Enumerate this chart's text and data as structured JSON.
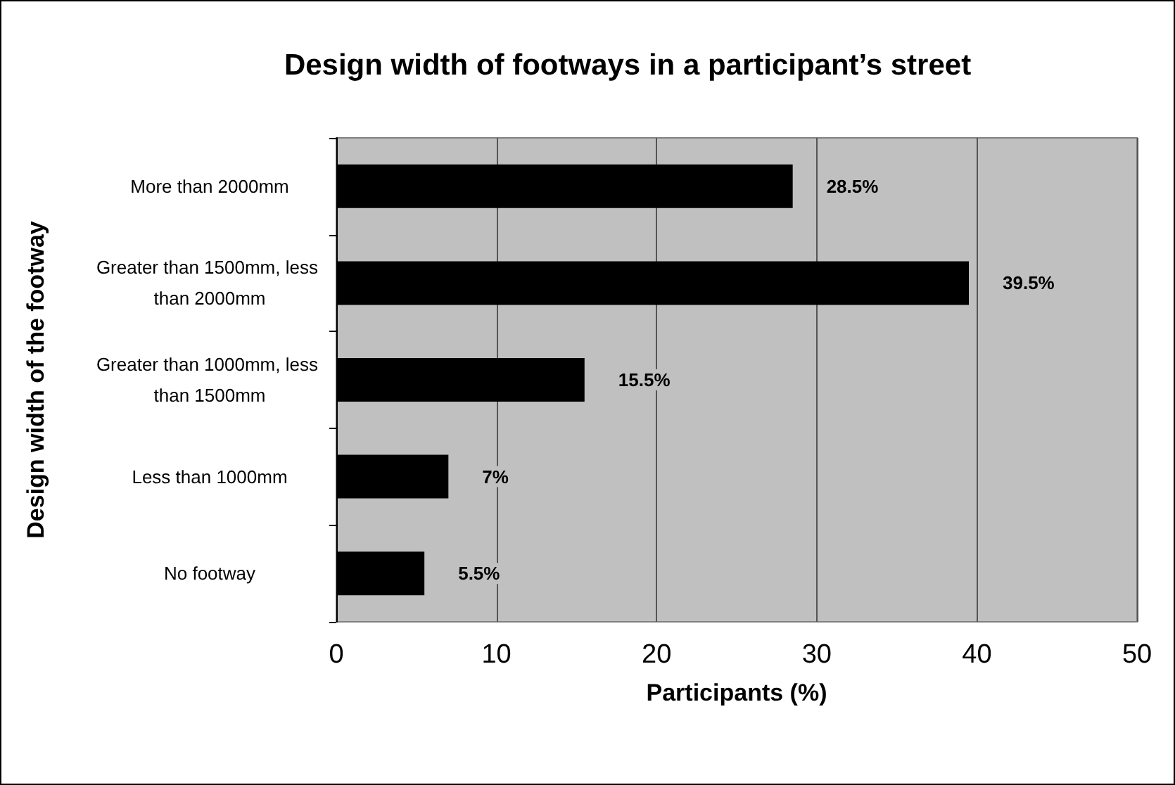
{
  "chart_data": {
    "type": "bar",
    "orientation": "horizontal",
    "title": "Design width of footways in a participant’s street",
    "xlabel": "Participants (%)",
    "ylabel": "Design width of the footway",
    "categories": [
      "More than 2000mm",
      "Greater than 1500mm, less than 2000mm",
      "Greater than 1000mm, less than 1500mm",
      "Less than 1000mm",
      "No footway"
    ],
    "values": [
      28.5,
      39.5,
      15.5,
      7,
      5.5
    ],
    "color": "#000000",
    "value_labels": [
      "28.5%",
      "39.5%",
      "15.5%",
      "7%",
      "5.5%"
    ],
    "xlim": [
      0,
      50
    ],
    "xticks": [
      0,
      10,
      20,
      30,
      40,
      50
    ],
    "grid": "x"
  }
}
